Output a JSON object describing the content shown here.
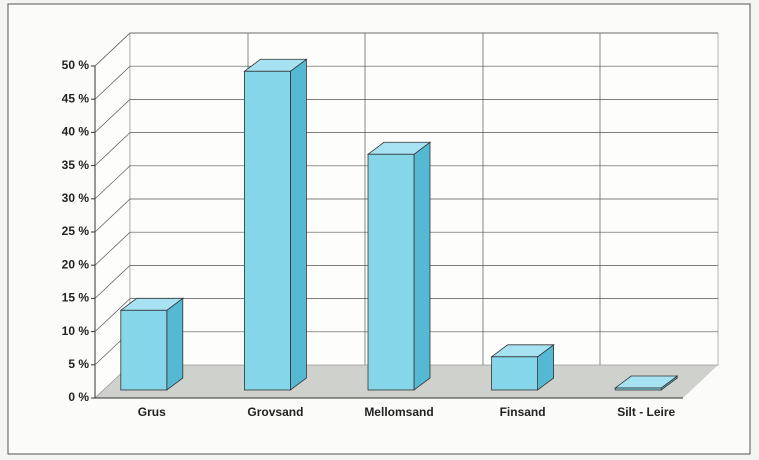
{
  "chart_data": {
    "type": "bar3d",
    "categories": [
      "Grus",
      "Grovsand",
      "Mellomsand",
      "Finsand",
      "Silt - Leire"
    ],
    "values": [
      12,
      48,
      35.5,
      5,
      0.3
    ],
    "color": "#86d6ea",
    "ylim": [
      0,
      50
    ],
    "yticks": [
      {
        "value": 0,
        "label": "0 %"
      },
      {
        "value": 5,
        "label": "5 %"
      },
      {
        "value": 10,
        "label": "10 %"
      },
      {
        "value": 15,
        "label": "15 %"
      },
      {
        "value": 20,
        "label": "20 %"
      },
      {
        "value": 25,
        "label": "25 %"
      },
      {
        "value": 30,
        "label": "30 %"
      },
      {
        "value": 35,
        "label": "35 %"
      },
      {
        "value": 40,
        "label": "40 %"
      },
      {
        "value": 45,
        "label": "45 %"
      },
      {
        "value": 50,
        "label": "50 %"
      }
    ],
    "grid": true
  }
}
